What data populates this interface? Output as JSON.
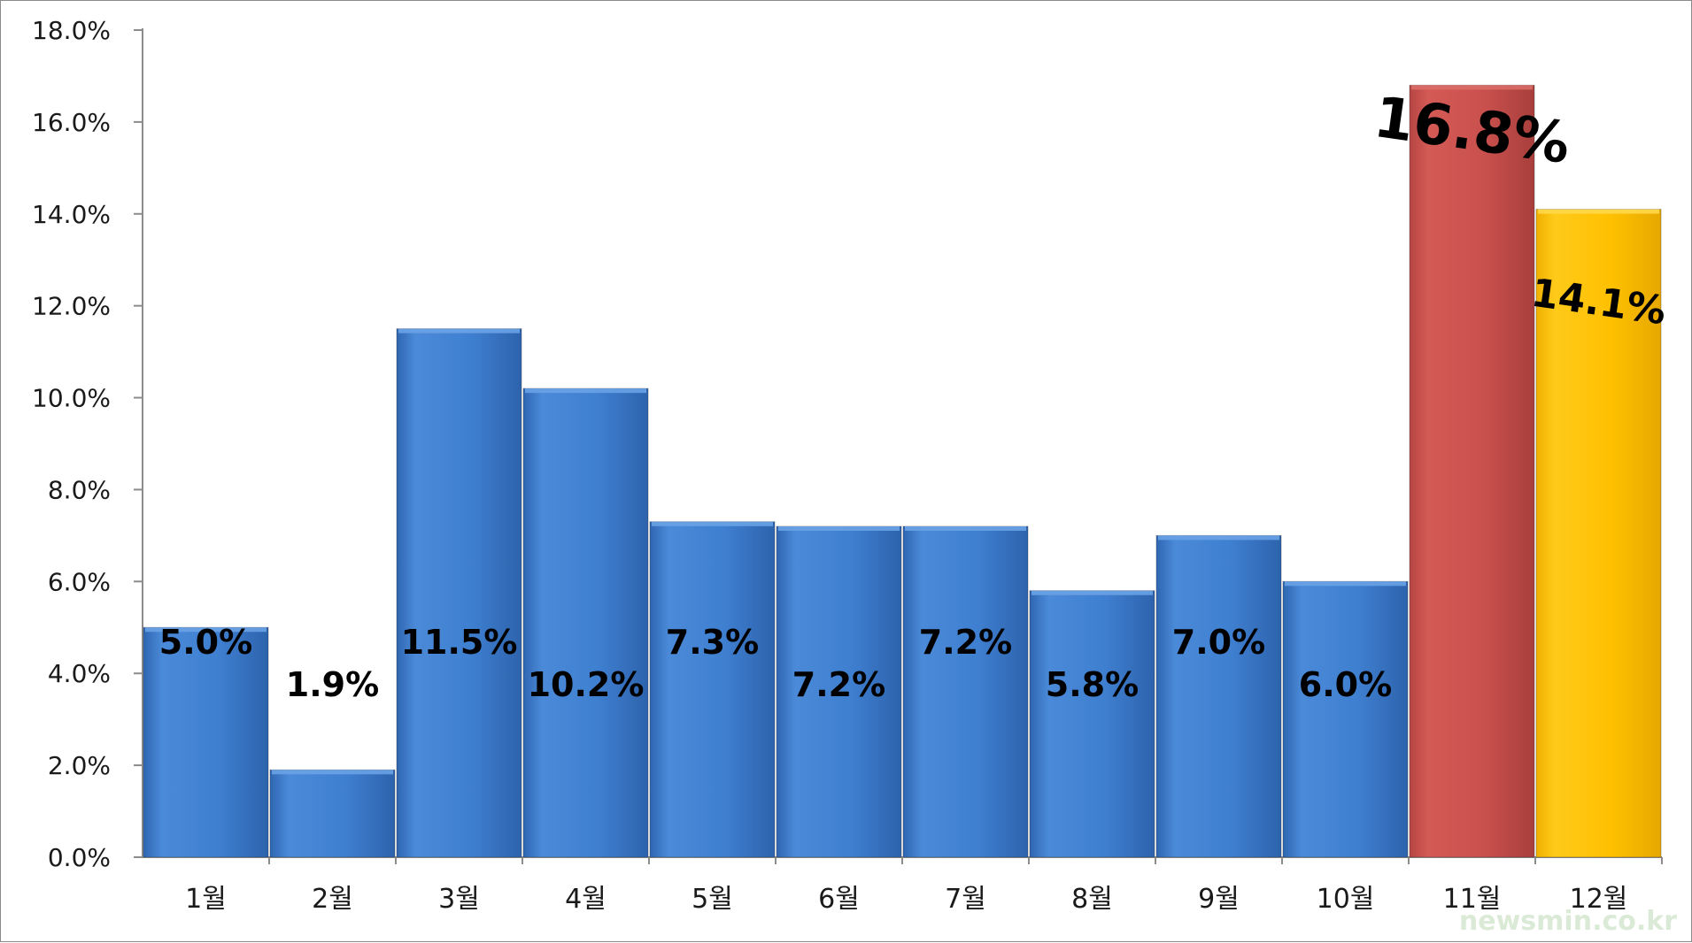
{
  "chart_data": {
    "type": "bar",
    "title": "",
    "xlabel": "",
    "ylabel": "",
    "categories": [
      "1월",
      "2월",
      "3월",
      "4월",
      "5월",
      "6월",
      "7월",
      "8월",
      "9월",
      "10월",
      "11월",
      "12월"
    ],
    "values": [
      5.0,
      1.9,
      11.5,
      10.2,
      7.3,
      7.2,
      7.2,
      5.8,
      7.0,
      6.0,
      16.8,
      14.1
    ],
    "data_labels": [
      "5.0%",
      "1.9%",
      "11.5%",
      "10.2%",
      "7.3%",
      "7.2%",
      "7.2%",
      "5.8%",
      "7.0%",
      "6.0%",
      "16.8%",
      "14.1%"
    ],
    "ylim": [
      0,
      18
    ],
    "y_ticks": [
      "0.0%",
      "2.0%",
      "4.0%",
      "6.0%",
      "8.0%",
      "10.0%",
      "12.0%",
      "14.0%",
      "16.0%",
      "18.0%"
    ],
    "grid": false,
    "colors": {
      "default": "#3f7fd0",
      "highlight_11": "#c9504d",
      "highlight_12": "#ffc000"
    }
  },
  "watermark": "newsmin.co.kr"
}
